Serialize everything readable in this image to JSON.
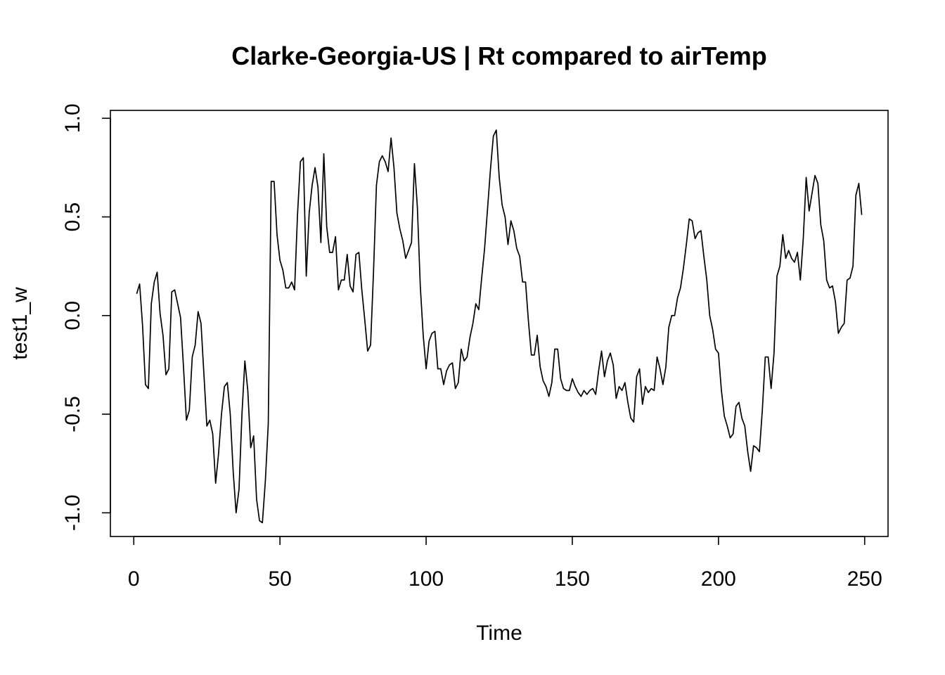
{
  "chart_data": {
    "type": "line",
    "title": "Clarke-Georgia-US | Rt compared to airTemp",
    "xlabel": "Time",
    "ylabel": "test1_w",
    "xlim": [
      -8,
      258
    ],
    "ylim": [
      -1.12,
      1.04
    ],
    "xticks": [
      0,
      50,
      100,
      150,
      200,
      250
    ],
    "yticks": [
      -1.0,
      -0.5,
      0.0,
      0.5,
      1.0
    ],
    "xtick_labels": [
      "0",
      "50",
      "100",
      "150",
      "200",
      "250"
    ],
    "ytick_labels": [
      "-1.0",
      "-0.5",
      "0.0",
      "0.5",
      "1.0"
    ],
    "grid": false,
    "colors": {
      "line": "#000000",
      "background": "#ffffff"
    },
    "series": [
      {
        "x_start": 1,
        "x_step": 1,
        "values": [
          0.11,
          0.16,
          -0.05,
          -0.35,
          -0.37,
          0.06,
          0.17,
          0.22,
          0.01,
          -0.1,
          -0.3,
          -0.27,
          0.12,
          0.13,
          0.06,
          -0.01,
          -0.26,
          -0.53,
          -0.48,
          -0.21,
          -0.15,
          0.02,
          -0.04,
          -0.3,
          -0.56,
          -0.53,
          -0.6,
          -0.85,
          -0.7,
          -0.5,
          -0.36,
          -0.34,
          -0.5,
          -0.79,
          -1.0,
          -0.88,
          -0.5,
          -0.23,
          -0.38,
          -0.67,
          -0.61,
          -0.93,
          -1.04,
          -1.05,
          -0.84,
          -0.55,
          0.68,
          0.68,
          0.41,
          0.28,
          0.23,
          0.14,
          0.14,
          0.17,
          0.13,
          0.51,
          0.78,
          0.8,
          0.2,
          0.52,
          0.66,
          0.75,
          0.65,
          0.37,
          0.82,
          0.45,
          0.32,
          0.32,
          0.4,
          0.13,
          0.18,
          0.18,
          0.31,
          0.15,
          0.12,
          0.31,
          0.32,
          0.13,
          -0.02,
          -0.18,
          -0.15,
          0.22,
          0.66,
          0.78,
          0.81,
          0.78,
          0.73,
          0.9,
          0.75,
          0.52,
          0.44,
          0.38,
          0.29,
          0.33,
          0.37,
          0.77,
          0.55,
          0.15,
          -0.1,
          -0.27,
          -0.13,
          -0.09,
          -0.08,
          -0.27,
          -0.27,
          -0.35,
          -0.28,
          -0.25,
          -0.24,
          -0.37,
          -0.34,
          -0.17,
          -0.23,
          -0.21,
          -0.11,
          -0.04,
          0.06,
          0.03,
          0.19,
          0.34,
          0.54,
          0.74,
          0.91,
          0.94,
          0.7,
          0.56,
          0.5,
          0.36,
          0.48,
          0.43,
          0.34,
          0.3,
          0.17,
          0.17,
          -0.03,
          -0.2,
          -0.2,
          -0.1,
          -0.26,
          -0.33,
          -0.36,
          -0.41,
          -0.34,
          -0.17,
          -0.17,
          -0.32,
          -0.37,
          -0.38,
          -0.38,
          -0.32,
          -0.36,
          -0.39,
          -0.41,
          -0.38,
          -0.4,
          -0.38,
          -0.37,
          -0.4,
          -0.28,
          -0.18,
          -0.31,
          -0.23,
          -0.19,
          -0.25,
          -0.42,
          -0.36,
          -0.38,
          -0.34,
          -0.44,
          -0.52,
          -0.54,
          -0.31,
          -0.27,
          -0.45,
          -0.36,
          -0.39,
          -0.37,
          -0.38,
          -0.21,
          -0.27,
          -0.35,
          -0.26,
          -0.06,
          0.0,
          0.0,
          0.09,
          0.14,
          0.24,
          0.36,
          0.49,
          0.48,
          0.39,
          0.42,
          0.43,
          0.3,
          0.18,
          0.0,
          -0.07,
          -0.17,
          -0.19,
          -0.38,
          -0.51,
          -0.56,
          -0.62,
          -0.6,
          -0.46,
          -0.44,
          -0.52,
          -0.56,
          -0.69,
          -0.79,
          -0.66,
          -0.67,
          -0.69,
          -0.48,
          -0.21,
          -0.21,
          -0.37,
          -0.19,
          0.2,
          0.25,
          0.41,
          0.29,
          0.33,
          0.29,
          0.27,
          0.32,
          0.18,
          0.39,
          0.7,
          0.53,
          0.62,
          0.71,
          0.67,
          0.46,
          0.38,
          0.18,
          0.14,
          0.15,
          0.07,
          -0.09,
          -0.06,
          -0.04,
          0.18,
          0.19,
          0.25,
          0.61,
          0.67,
          0.51
        ]
      }
    ]
  }
}
